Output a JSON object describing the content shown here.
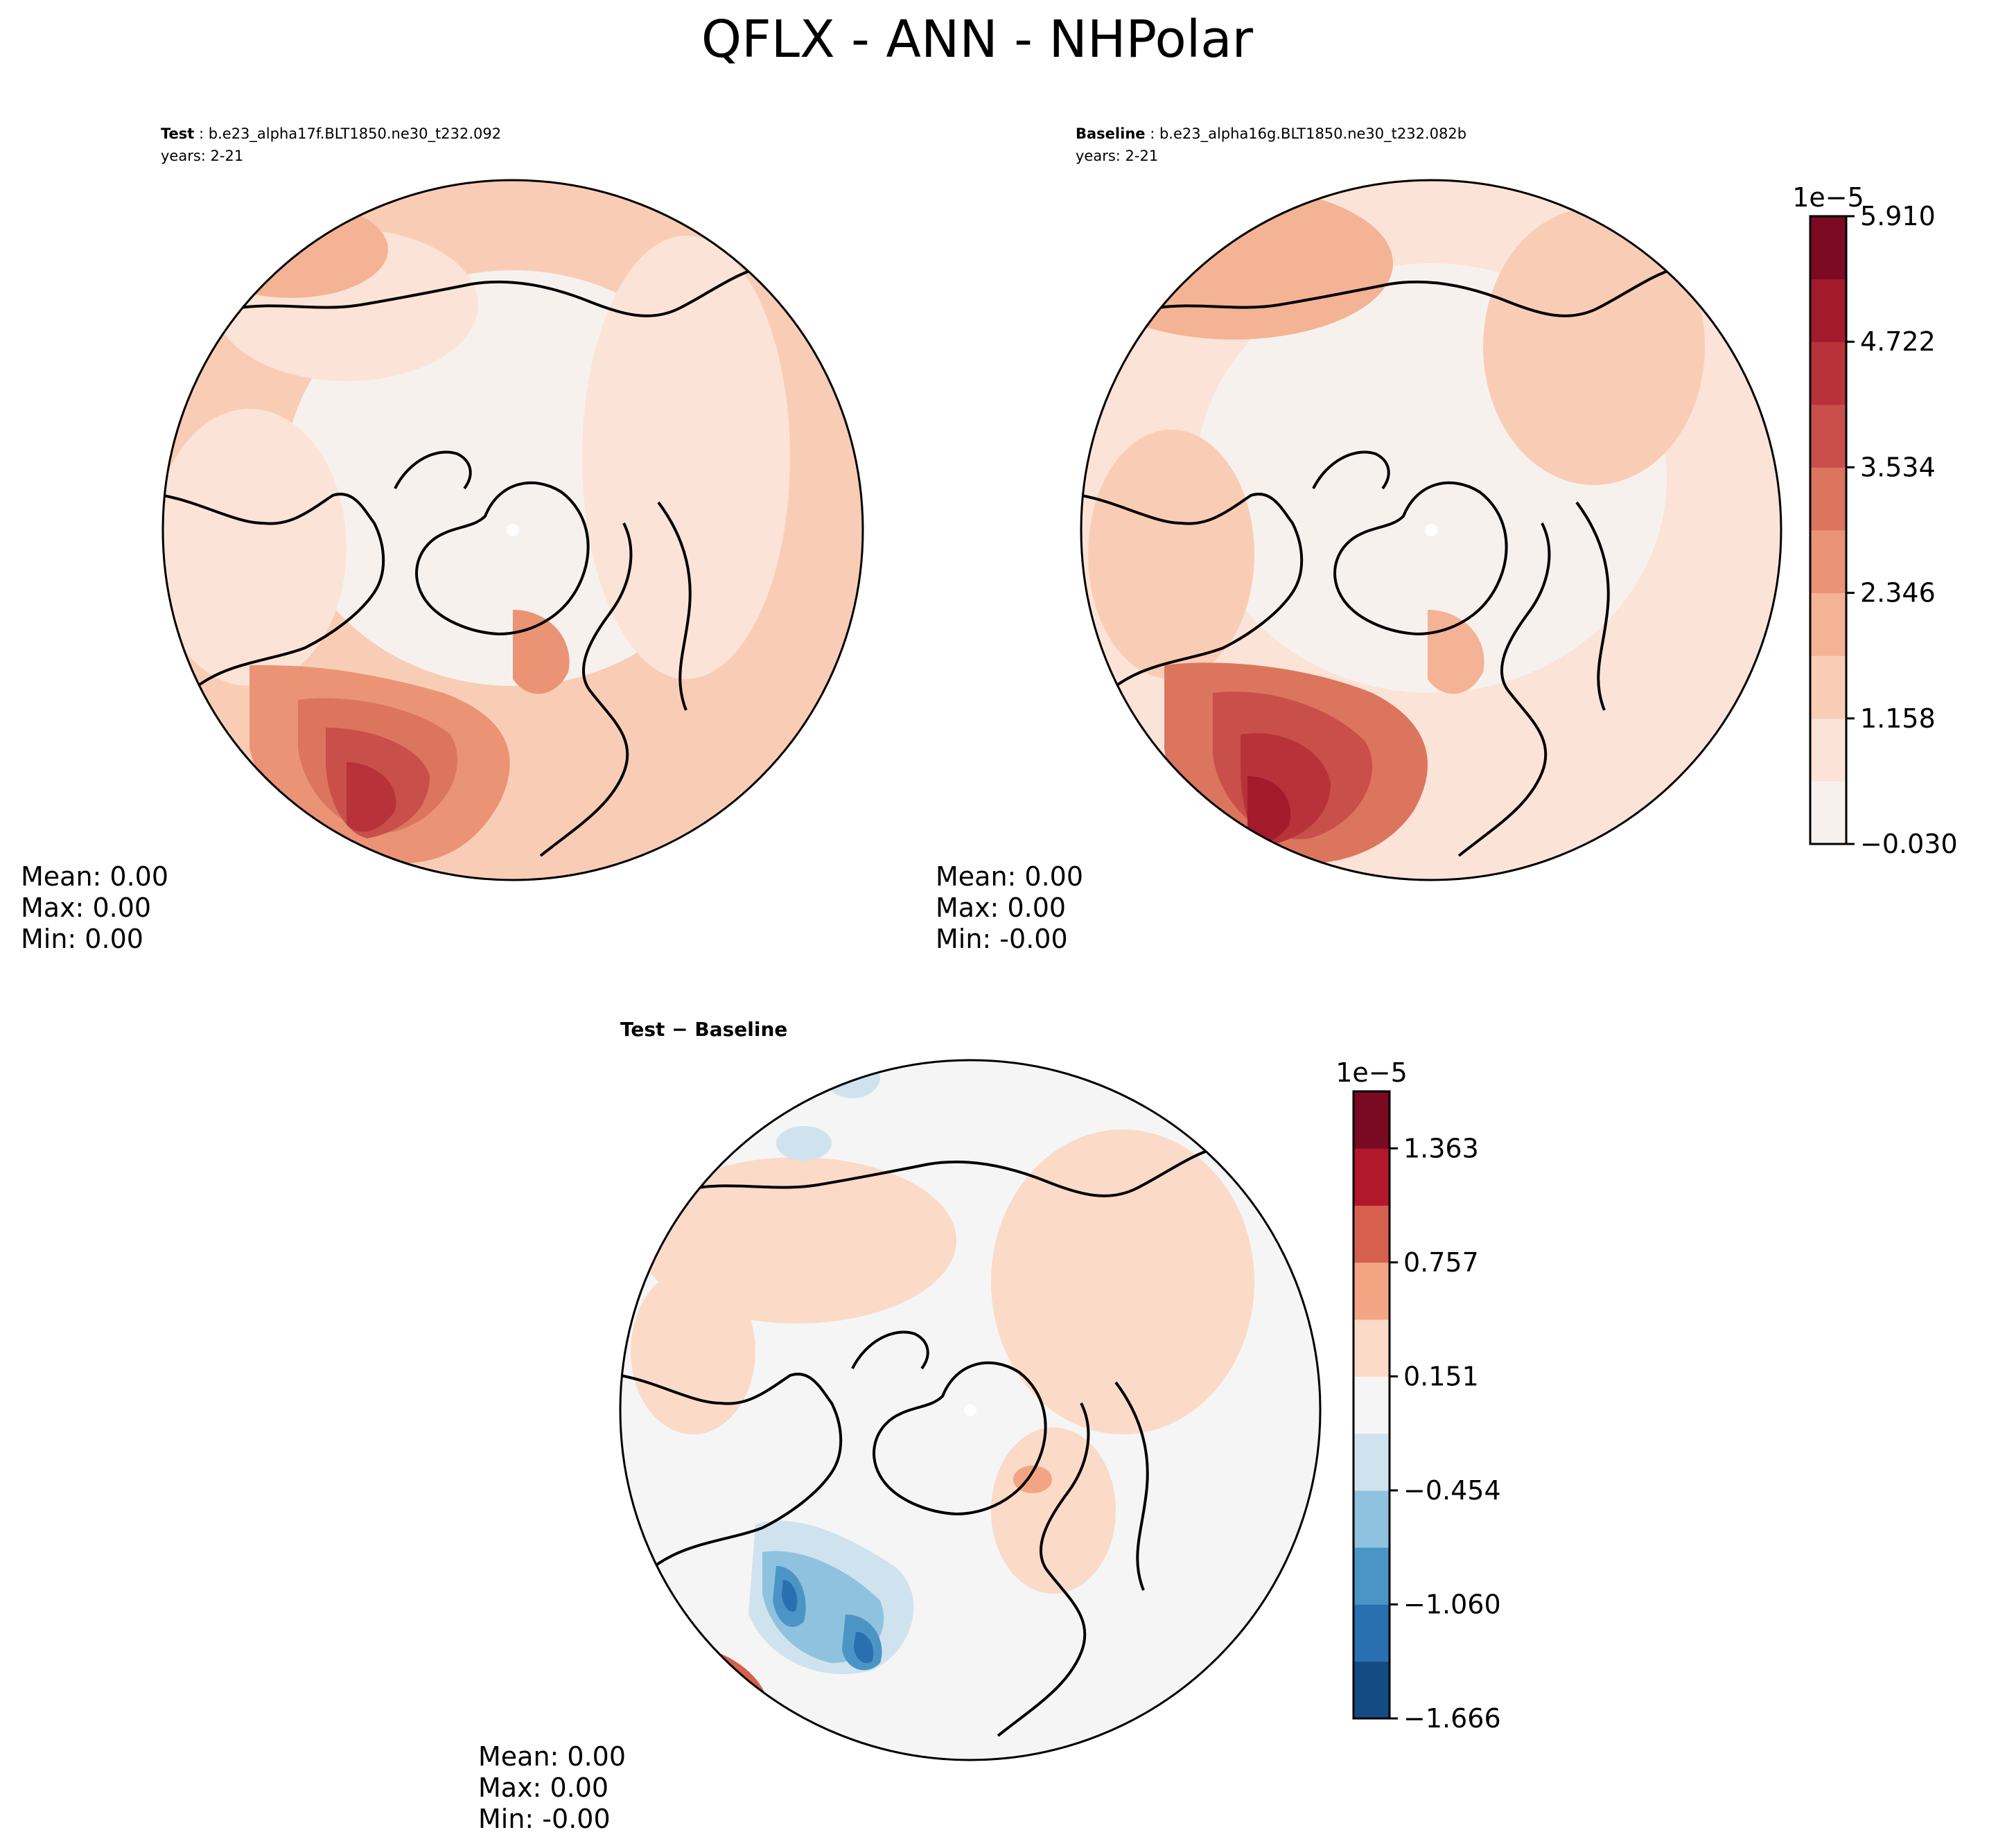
{
  "figure": {
    "title": "QFLX - ANN - NHPolar"
  },
  "panels": [
    {
      "id": "test",
      "label": "Test",
      "case": "b.e23_alpha17f.BLT1850.ne30_t232.092",
      "years": "years: 2-21",
      "stats": {
        "mean": "Mean:  0.00",
        "max": "Max:  0.00",
        "min": "Min:  0.00"
      }
    },
    {
      "id": "baseline",
      "label": "Baseline",
      "case": "b.e23_alpha16g.BLT1850.ne30_t232.082b",
      "years": "years: 2-21",
      "stats": {
        "mean": "Mean:  0.00",
        "max": "Max:  0.00",
        "min": "Min: -0.00"
      }
    },
    {
      "id": "diff",
      "label": "Test − Baseline",
      "stats": {
        "mean": "Mean:  0.00",
        "max": "Max:  0.00",
        "min": "Min: -0.00"
      }
    }
  ],
  "colorbars": [
    {
      "id": "abs",
      "exponent": "1e−5",
      "ticks": [
        "−0.030",
        "1.158",
        "2.346",
        "3.534",
        "4.722",
        "5.910"
      ],
      "colors": [
        "#f7f1ee",
        "#fbe3d7",
        "#f9cdb5",
        "#f4b395",
        "#ea9475",
        "#dc755d",
        "#c9504a",
        "#b83339",
        "#a31a2d",
        "#7c0a22"
      ]
    },
    {
      "id": "diff",
      "exponent": "1e−5",
      "ticks": [
        "−1.666",
        "−1.060",
        "−0.454",
        "0.151",
        "0.757",
        "1.363"
      ],
      "colors": [
        "#134b85",
        "#2a70b0",
        "#4b94c6",
        "#8fc2de",
        "#cfe3ef",
        "#f5f5f5",
        "#fbdac8",
        "#f3a583",
        "#d6604d",
        "#b2182b",
        "#7a0a21"
      ]
    }
  ],
  "chart_data": [
    {
      "type": "heatmap",
      "title": "Test : b.e23_alpha17f.BLT1850.ne30_t232.092",
      "subtitle": "years: 2-21",
      "projection": "north polar stereographic",
      "variable": "QFLX",
      "colorbar_exponent": "1e−5",
      "levels": [
        -0.03,
        1.158,
        2.346,
        3.534,
        4.722,
        5.91
      ],
      "stats": {
        "mean": 0.0,
        "max": 0.0,
        "min": 0.0
      }
    },
    {
      "type": "heatmap",
      "title": "Baseline : b.e23_alpha16g.BLT1850.ne30_t232.082b",
      "subtitle": "years: 2-21",
      "projection": "north polar stereographic",
      "variable": "QFLX",
      "colorbar_exponent": "1e−5",
      "levels": [
        -0.03,
        1.158,
        2.346,
        3.534,
        4.722,
        5.91
      ],
      "stats": {
        "mean": 0.0,
        "max": 0.0,
        "min": -0.0
      }
    },
    {
      "type": "heatmap",
      "title": "Test − Baseline",
      "projection": "north polar stereographic",
      "variable": "QFLX",
      "colorbar_exponent": "1e−5",
      "levels": [
        -1.666,
        -1.06,
        -0.454,
        0.151,
        0.757,
        1.363
      ],
      "stats": {
        "mean": 0.0,
        "max": 0.0,
        "min": -0.0
      }
    }
  ]
}
